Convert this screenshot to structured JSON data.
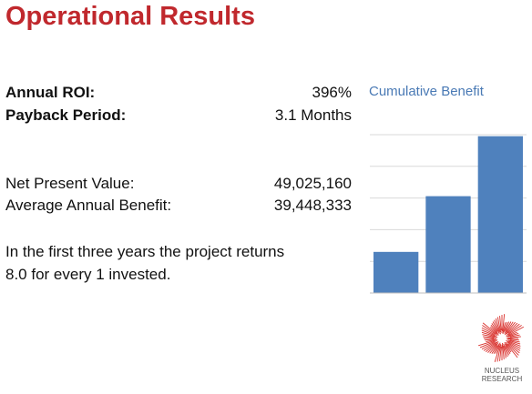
{
  "title": "Operational Results",
  "metrics": {
    "roi": {
      "label": "Annual ROI:",
      "value": "396%"
    },
    "payback": {
      "label": "Payback Period:",
      "value": "3.1 Months"
    },
    "npv": {
      "label": "Net Present Value:",
      "value": "49,025,160"
    },
    "avg_benefit": {
      "label": "Average Annual Benefit:",
      "value": "39,448,333"
    }
  },
  "summary": {
    "line1": "In the first three years the project returns",
    "line2": "8.0 for every 1 invested."
  },
  "logo": {
    "line1": "NUCLEUS",
    "line2": "RESEARCH"
  },
  "colors": {
    "title": "#c0282d",
    "bar": "#4f81bd",
    "chart_title": "#4a7ab5",
    "logo": "#d9302c"
  },
  "chart_data": {
    "type": "bar",
    "title": "Cumulative Benefit",
    "categories": [
      "",
      "",
      ""
    ],
    "values": [
      13.5,
      31.8,
      51.5
    ],
    "ylim": [
      0,
      52
    ],
    "grid": true,
    "legend": "none"
  }
}
